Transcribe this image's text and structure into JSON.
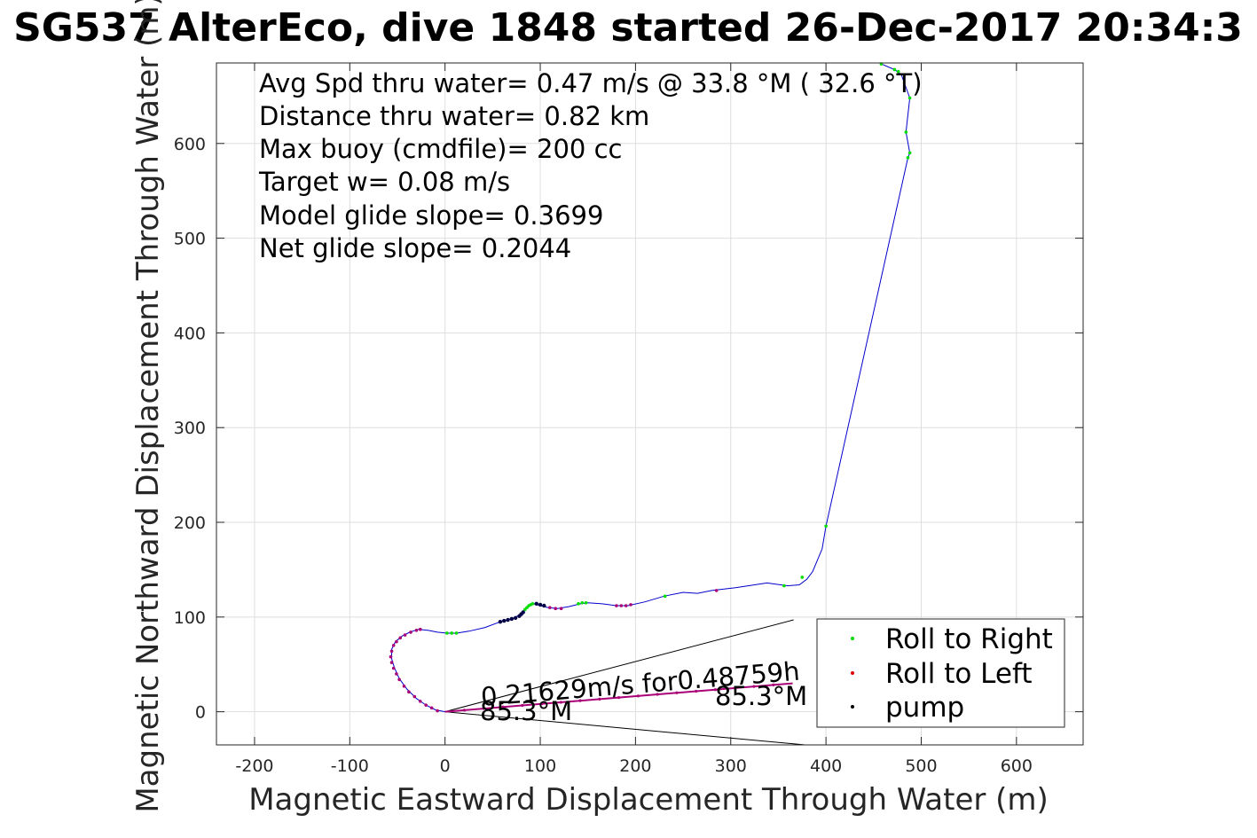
{
  "title": "SG537 AlterEco, dive 1848 started 26-Dec-2017 20:34:3",
  "info_lines": [
    "Avg Spd thru water=  0.47 m/s @  33.8 °M ( 32.6 °T)",
    "Distance thru water=  0.82 km",
    "Max buoy (cmdfile)= 200 cc",
    "Target w= 0.08 m/s",
    "Model glide slope= 0.3699",
    "Net glide slope= 0.2044"
  ],
  "annotations": {
    "current_line": "0.21629m/s for0.48759h",
    "heading_left": "85.3°M",
    "heading_right": "85.3°M"
  },
  "colors": {
    "track": "#0000cc",
    "roll_right": "#00dd00",
    "roll_left": "#dd0000",
    "pump": "#000044",
    "overlap": "#aa0077",
    "current": "#000000",
    "grid": "#dedede"
  },
  "chart_data": {
    "type": "line",
    "title": "SG537 AlterEco, dive 1848 started 26-Dec-2017 20:34:3",
    "xlabel": "Magnetic Eastward Displacement Through Water (m)",
    "ylabel": "Magnetic Northward Displacement Through Water (m)",
    "xlim": [
      -240,
      670
    ],
    "ylim": [
      -35,
      685
    ],
    "xticks": [
      -200,
      -100,
      0,
      100,
      200,
      300,
      400,
      500,
      600
    ],
    "yticks": [
      0,
      100,
      200,
      300,
      400,
      500,
      600
    ],
    "grid": true,
    "legend_position": "bottom-right",
    "legend": [
      {
        "label": "Roll to Right",
        "color": "#00dd00"
      },
      {
        "label": "Roll to Left",
        "color": "#dd0000"
      },
      {
        "label": "pump",
        "color": "#000000"
      }
    ],
    "track": [
      [
        0,
        0
      ],
      [
        -10,
        2
      ],
      [
        -20,
        7
      ],
      [
        -30,
        14
      ],
      [
        -40,
        24
      ],
      [
        -48,
        35
      ],
      [
        -53,
        46
      ],
      [
        -56,
        56
      ],
      [
        -56,
        66
      ],
      [
        -52,
        74
      ],
      [
        -45,
        80
      ],
      [
        -37,
        84
      ],
      [
        -28,
        87
      ],
      [
        -18,
        86
      ],
      [
        -8,
        84
      ],
      [
        2,
        83
      ],
      [
        12,
        83
      ],
      [
        25,
        85
      ],
      [
        42,
        89
      ],
      [
        58,
        95
      ],
      [
        72,
        99
      ],
      [
        80,
        103
      ],
      [
        84,
        108
      ],
      [
        88,
        112
      ],
      [
        94,
        114
      ],
      [
        100,
        112
      ],
      [
        108,
        110
      ],
      [
        118,
        109
      ],
      [
        130,
        111
      ],
      [
        142,
        114
      ],
      [
        150,
        115
      ],
      [
        165,
        114
      ],
      [
        180,
        112
      ],
      [
        192,
        112
      ],
      [
        210,
        116
      ],
      [
        230,
        122
      ],
      [
        250,
        126
      ],
      [
        265,
        125
      ],
      [
        280,
        128
      ],
      [
        305,
        131
      ],
      [
        338,
        136
      ],
      [
        360,
        133
      ],
      [
        372,
        134
      ],
      [
        380,
        140
      ],
      [
        386,
        148
      ],
      [
        396,
        172
      ],
      [
        400,
        196
      ],
      [
        486,
        585
      ],
      [
        488,
        590
      ],
      [
        484,
        612
      ],
      [
        488,
        648
      ],
      [
        479,
        673
      ],
      [
        472,
        678
      ],
      [
        458,
        684
      ]
    ],
    "roll_right": [
      [
        2,
        83
      ],
      [
        7,
        83
      ],
      [
        12,
        83
      ],
      [
        84,
        108
      ],
      [
        86,
        110
      ],
      [
        88,
        112
      ],
      [
        90,
        113
      ],
      [
        92,
        114
      ],
      [
        140,
        114
      ],
      [
        144,
        115
      ],
      [
        148,
        115
      ],
      [
        231,
        122
      ],
      [
        356,
        133
      ],
      [
        375,
        142
      ],
      [
        400,
        196
      ],
      [
        486,
        585
      ],
      [
        488,
        590
      ],
      [
        484,
        612
      ],
      [
        488,
        648
      ],
      [
        472,
        678
      ],
      [
        476,
        676
      ],
      [
        458,
        684
      ]
    ],
    "roll_left": [
      [
        -8,
        1
      ],
      [
        -14,
        4
      ],
      [
        -20,
        7
      ],
      [
        -26,
        11
      ],
      [
        -32,
        16
      ],
      [
        -38,
        21
      ],
      [
        -43,
        27
      ],
      [
        -48,
        34
      ],
      [
        -51,
        40
      ],
      [
        -54,
        46
      ],
      [
        -56,
        52
      ],
      [
        -57,
        58
      ],
      [
        -56,
        64
      ],
      [
        -54,
        70
      ],
      [
        -51,
        74
      ],
      [
        -47,
        78
      ],
      [
        -42,
        81
      ],
      [
        -36,
        84
      ],
      [
        -30,
        86
      ],
      [
        -26,
        87
      ],
      [
        110,
        110
      ],
      [
        116,
        109
      ],
      [
        122,
        109
      ],
      [
        180,
        112
      ],
      [
        185,
        112
      ],
      [
        190,
        112
      ],
      [
        195,
        113
      ],
      [
        285,
        128
      ]
    ],
    "pump": [
      [
        58,
        95
      ],
      [
        62,
        96
      ],
      [
        66,
        97
      ],
      [
        70,
        98
      ],
      [
        74,
        99
      ],
      [
        78,
        101
      ],
      [
        80,
        103
      ],
      [
        82,
        105
      ],
      [
        96,
        114
      ],
      [
        100,
        113
      ],
      [
        104,
        112
      ]
    ],
    "current": {
      "speed_mps": 0.21629,
      "duration_h": 0.48759,
      "heading_deg_mag": 85.3,
      "vector": [
        [
          0,
          0
        ],
        [
          365,
          30
        ]
      ],
      "wedge_upper": [
        [
          0,
          0
        ],
        [
          366,
          97
        ]
      ],
      "wedge_lower": [
        [
          0,
          0
        ],
        [
          378,
          -35
        ]
      ]
    }
  }
}
